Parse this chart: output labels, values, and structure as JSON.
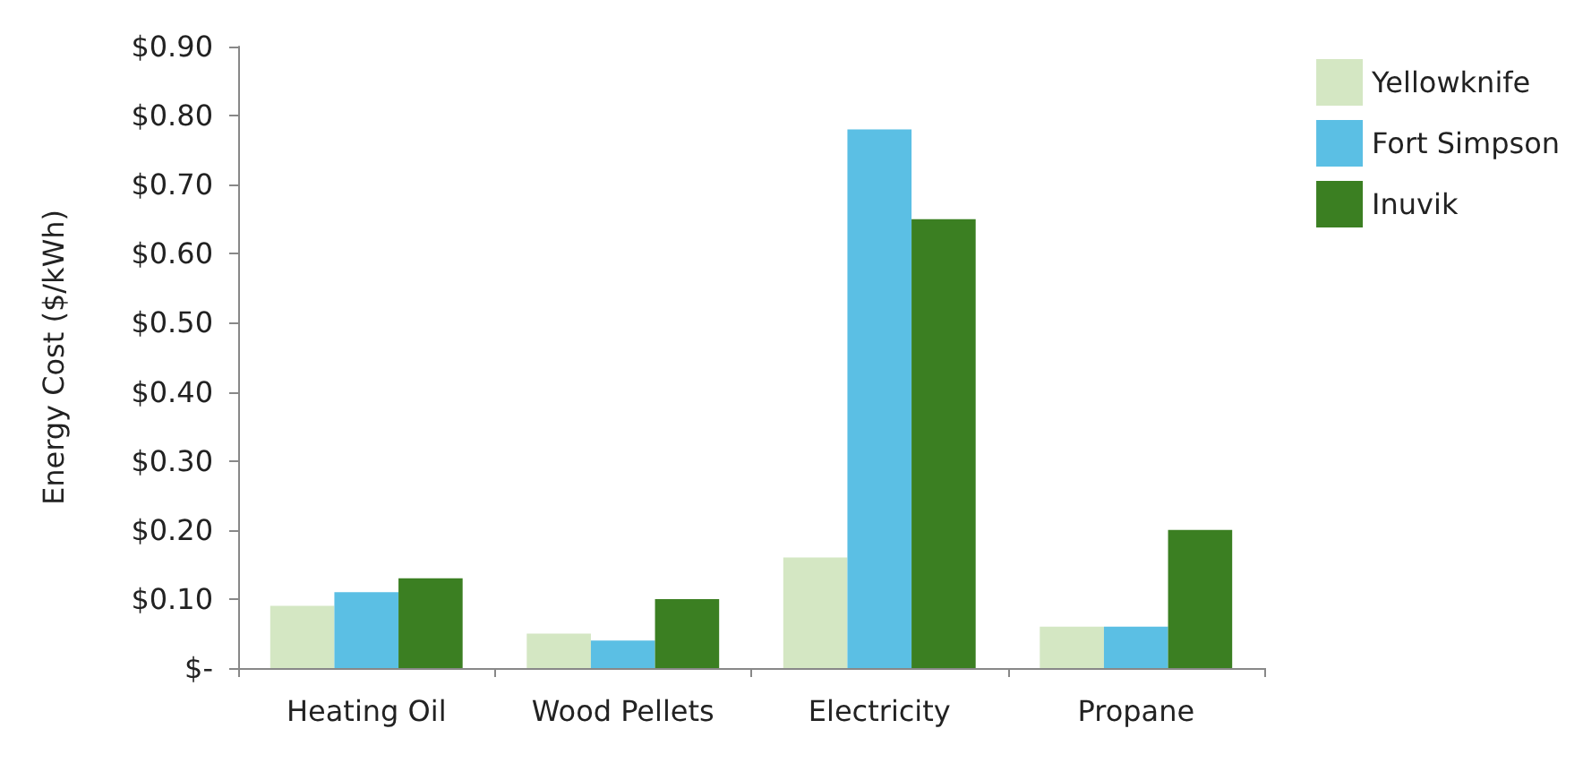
{
  "chart_data": {
    "type": "bar",
    "ylabel": "Energy Cost ($/kWh)",
    "categories": [
      "Heating Oil",
      "Wood Pellets",
      "Electricity",
      "Propane"
    ],
    "series": [
      {
        "name": "Yellowknife",
        "color": "#d4e7c3",
        "values": [
          0.09,
          0.05,
          0.16,
          0.06
        ]
      },
      {
        "name": "Fort Simpson",
        "color": "#5bbfe4",
        "values": [
          0.11,
          0.04,
          0.78,
          0.06
        ]
      },
      {
        "name": "Inuvik",
        "color": "#3b7f22",
        "values": [
          0.13,
          0.1,
          0.65,
          0.2
        ]
      }
    ],
    "ylim": [
      0,
      0.9
    ],
    "yticks": [
      {
        "value": 0,
        "label": "$-"
      },
      {
        "value": 0.1,
        "label": "$0.10"
      },
      {
        "value": 0.2,
        "label": "$0.20"
      },
      {
        "value": 0.3,
        "label": "$0.30"
      },
      {
        "value": 0.4,
        "label": "$0.40"
      },
      {
        "value": 0.5,
        "label": "$0.50"
      },
      {
        "value": 0.6,
        "label": "$0.60"
      },
      {
        "value": 0.7,
        "label": "$0.70"
      },
      {
        "value": 0.8,
        "label": "$0.80"
      },
      {
        "value": 0.9,
        "label": "$0.90"
      }
    ],
    "grid": false,
    "legend": "right"
  }
}
